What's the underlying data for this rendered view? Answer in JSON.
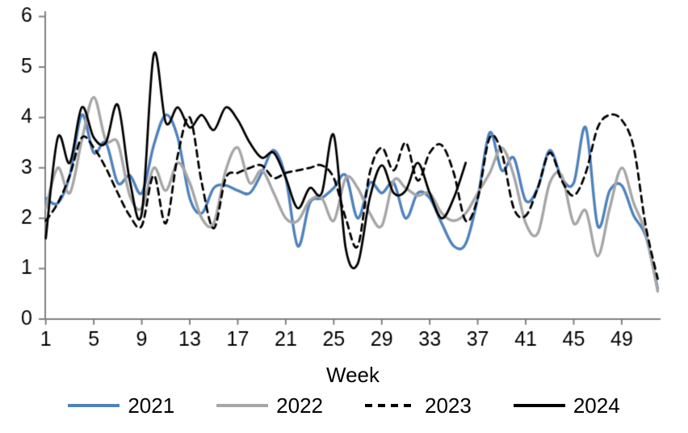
{
  "chart_data": {
    "type": "line",
    "title": "",
    "xlabel": "Week",
    "ylabel": "",
    "xlim": [
      1,
      52
    ],
    "ylim": [
      0,
      6
    ],
    "x_ticks": [
      1,
      5,
      9,
      13,
      17,
      21,
      25,
      29,
      33,
      37,
      41,
      45,
      49
    ],
    "y_ticks": [
      0,
      1,
      2,
      3,
      4,
      5,
      6
    ],
    "grid": false,
    "legend_position": "bottom",
    "axis_color": "#808080",
    "text_color": "#000000",
    "weeks": [
      1,
      2,
      3,
      4,
      5,
      6,
      7,
      8,
      9,
      10,
      11,
      12,
      13,
      14,
      15,
      16,
      17,
      18,
      19,
      20,
      21,
      22,
      23,
      24,
      25,
      26,
      27,
      28,
      29,
      30,
      31,
      32,
      33,
      34,
      35,
      36,
      37,
      38,
      39,
      40,
      41,
      42,
      43,
      44,
      45,
      46,
      47,
      48,
      49,
      50,
      51,
      52
    ],
    "series": [
      {
        "name": "2021",
        "color": "#4F81BD",
        "style": "solid",
        "width": 3.4,
        "values": [
          2.4,
          2.3,
          2.85,
          4.05,
          3.3,
          3.5,
          2.7,
          2.85,
          2.5,
          3.45,
          4.05,
          3.6,
          2.4,
          2.1,
          2.6,
          2.65,
          2.55,
          2.5,
          2.9,
          3.35,
          2.8,
          1.45,
          2.3,
          2.4,
          2.6,
          2.85,
          2.0,
          2.7,
          2.5,
          2.7,
          2.0,
          2.5,
          2.4,
          1.9,
          1.45,
          1.5,
          2.4,
          3.7,
          2.95,
          3.2,
          2.35,
          2.6,
          3.35,
          2.8,
          2.7,
          3.8,
          1.85,
          2.55,
          2.65,
          2.05,
          1.65,
          0.6
        ]
      },
      {
        "name": "2022",
        "color": "#A6A6A6",
        "style": "solid",
        "width": 3.4,
        "values": [
          2.2,
          3.0,
          2.5,
          3.55,
          4.4,
          3.55,
          3.5,
          2.45,
          2.2,
          3.0,
          2.55,
          3.1,
          2.7,
          2.0,
          1.9,
          2.95,
          3.4,
          2.7,
          2.95,
          2.5,
          2.0,
          1.95,
          2.35,
          2.4,
          1.95,
          2.8,
          2.6,
          2.1,
          1.85,
          2.75,
          2.6,
          2.45,
          2.5,
          2.1,
          1.95,
          2.1,
          2.5,
          2.9,
          3.4,
          2.85,
          1.9,
          1.7,
          2.7,
          2.85,
          1.9,
          2.15,
          1.25,
          2.2,
          3.0,
          2.3,
          1.7,
          0.55
        ]
      },
      {
        "name": "2023",
        "color": "#000000",
        "style": "dashed",
        "width": 2.8,
        "values": [
          1.95,
          2.3,
          2.85,
          3.6,
          3.4,
          3.0,
          2.5,
          2.05,
          1.85,
          2.85,
          1.9,
          3.25,
          4.0,
          2.7,
          1.8,
          2.8,
          2.9,
          3.0,
          3.05,
          2.8,
          2.9,
          2.95,
          3.0,
          3.05,
          2.8,
          2.0,
          1.45,
          2.9,
          3.4,
          2.95,
          3.5,
          2.75,
          3.3,
          3.45,
          2.9,
          1.95,
          2.4,
          3.6,
          3.3,
          2.2,
          2.05,
          2.6,
          3.3,
          2.75,
          2.45,
          2.9,
          3.8,
          4.05,
          3.95,
          3.4,
          1.85,
          0.8
        ]
      },
      {
        "name": "2024",
        "color": "#000000",
        "style": "solid",
        "width": 2.8,
        "values": [
          1.6,
          3.6,
          3.1,
          4.2,
          3.6,
          3.5,
          4.25,
          2.75,
          2.1,
          5.25,
          3.9,
          4.2,
          3.8,
          4.05,
          3.75,
          4.2,
          3.95,
          3.5,
          3.2,
          3.3,
          2.8,
          2.2,
          2.6,
          2.5,
          3.65,
          1.4,
          1.1,
          2.4,
          3.05,
          2.5,
          2.55,
          3.1,
          2.5,
          2.0,
          2.4,
          3.1
        ]
      }
    ]
  }
}
